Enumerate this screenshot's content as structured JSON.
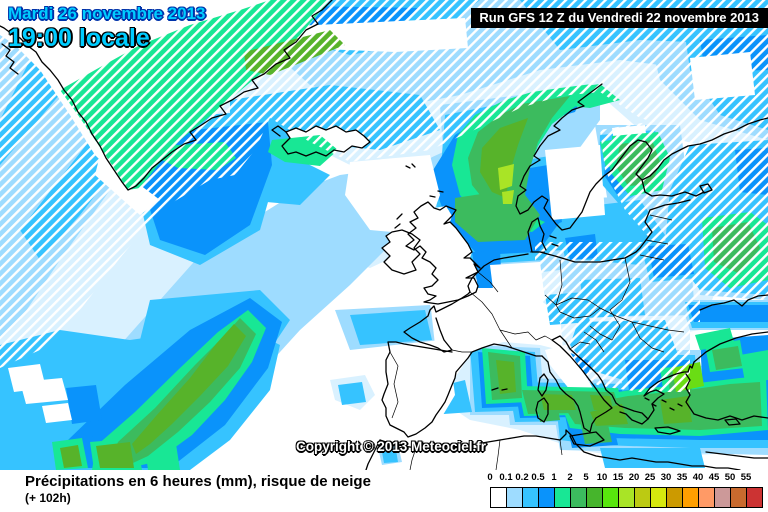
{
  "overlay": {
    "valid_date": "Mardi 26 novembre 2013",
    "valid_time": "19:00 locale",
    "run_info": "Run GFS 12 Z du Vendredi 22 novembre 2013",
    "copyright": "Copyright © 2013 Meteociel.fr"
  },
  "footer": {
    "title": "Précipitations en 6 heures (mm), risque de neige",
    "lead_time": "(+ 102h)"
  },
  "legend": {
    "unit": "mm",
    "entries": [
      {
        "label": "0",
        "color": "#ffffff"
      },
      {
        "label": "0.1",
        "color": "#9edcff"
      },
      {
        "label": "0.2",
        "color": "#36c3ff"
      },
      {
        "label": "0.5",
        "color": "#0a93fb"
      },
      {
        "label": "1",
        "color": "#18e795"
      },
      {
        "label": "2",
        "color": "#3cbb5e"
      },
      {
        "label": "5",
        "color": "#46b52c"
      },
      {
        "label": "10",
        "color": "#58e60d"
      },
      {
        "label": "15",
        "color": "#a9e426"
      },
      {
        "label": "20",
        "color": "#bcca12"
      },
      {
        "label": "25",
        "color": "#d6e80e"
      },
      {
        "label": "30",
        "color": "#cc9a00"
      },
      {
        "label": "35",
        "color": "#ff9f00"
      },
      {
        "label": "40",
        "color": "#ff9a66"
      },
      {
        "label": "45",
        "color": "#cc9999"
      },
      {
        "label": "50",
        "color": "#c96a2e"
      },
      {
        "label": "55",
        "color": "#cc3333"
      }
    ]
  },
  "map_colors": {
    "snow_hatch": "#ffffff",
    "coastline": "#000000",
    "sea_no_precip": "#ffffff"
  }
}
